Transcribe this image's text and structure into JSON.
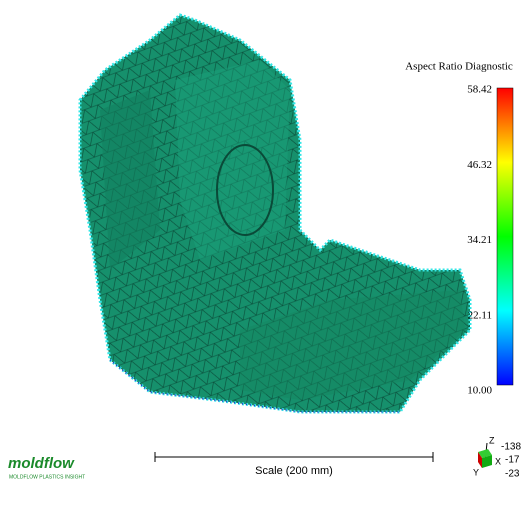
{
  "legend": {
    "title": "Aspect Ratio Diagnostic",
    "labels": [
      "58.42",
      "46.32",
      "34.21",
      "22.11",
      "10.00"
    ]
  },
  "scale": {
    "label": "Scale (200 mm)"
  },
  "triad": {
    "axes": [
      "Z",
      "X",
      "Y"
    ],
    "values": [
      "-138",
      "-17",
      "-23"
    ]
  },
  "logo": {
    "name": "moldflow",
    "product": "MOLDFLOW PLASTICS INSIGHT"
  }
}
